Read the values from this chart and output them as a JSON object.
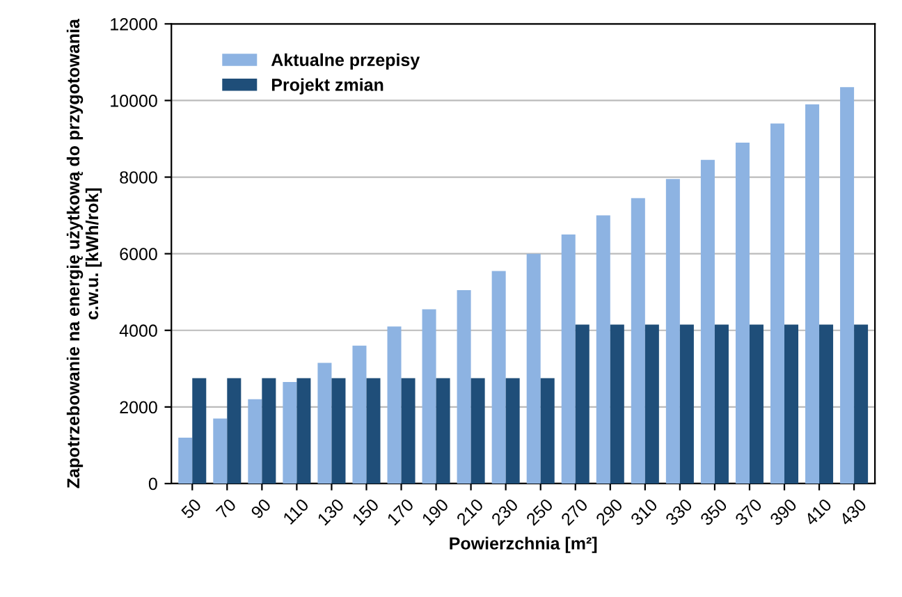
{
  "chart_data": {
    "type": "bar",
    "xlabel": "Powierzchnia [m²]",
    "ylabel": "Zapotrzebowanie na energię użytkową do przygotowania c.w.u. [kWh/rok]",
    "categories": [
      "50",
      "70",
      "90",
      "110",
      "130",
      "150",
      "170",
      "190",
      "210",
      "230",
      "250",
      "270",
      "290",
      "310",
      "330",
      "350",
      "370",
      "390",
      "410",
      "430"
    ],
    "series": [
      {
        "name": "Aktualne przepisy",
        "color": "#8db3e2",
        "values": [
          1200,
          1700,
          2200,
          2650,
          3150,
          3600,
          4100,
          4550,
          5050,
          5550,
          6000,
          6500,
          7000,
          7450,
          7950,
          8450,
          8900,
          9400,
          9900,
          10350
        ]
      },
      {
        "name": "Projekt zmian",
        "color": "#1f4e79",
        "values": [
          2750,
          2750,
          2750,
          2750,
          2750,
          2750,
          2750,
          2750,
          2750,
          2750,
          2750,
          4150,
          4150,
          4150,
          4150,
          4150,
          4150,
          4150,
          4150,
          4150
        ]
      }
    ],
    "ylim": [
      0,
      12000
    ],
    "yticks": [
      0,
      2000,
      4000,
      6000,
      8000,
      10000,
      12000
    ],
    "grid": "y",
    "legend": "top left"
  }
}
